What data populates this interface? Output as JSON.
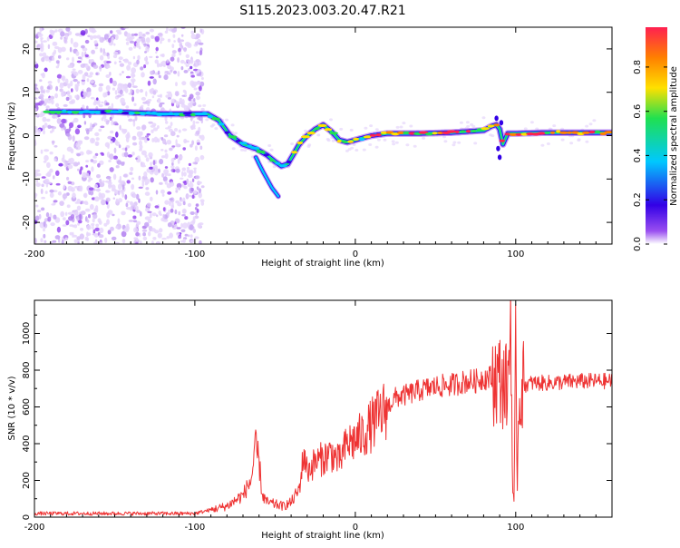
{
  "title": "S115.2023.003.20.47.R21",
  "chart_data": [
    {
      "type": "heatmap",
      "xlabel": "Height of straight line (km)",
      "ylabel": "Frequency (Hz)",
      "xlim": [
        -200,
        160
      ],
      "ylim": [
        -25,
        25
      ],
      "xticks": [
        -200,
        -100,
        0,
        100
      ],
      "yticks": [
        -20,
        -10,
        0,
        10,
        20
      ],
      "ridge": {
        "x": [
          -190,
          -150,
          -120,
          -100,
          -92,
          -85,
          -78,
          -70,
          -62,
          -55,
          -50,
          -46,
          -42,
          -35,
          -30,
          -25,
          -20,
          -15,
          -10,
          -5,
          0,
          10,
          20,
          40,
          60,
          80,
          85,
          88,
          90,
          92,
          95,
          100,
          120,
          140,
          160
        ],
        "y": [
          5.5,
          5.5,
          5,
          5,
          5,
          3.5,
          0,
          -2,
          -3,
          -4.5,
          -6,
          -7,
          -6.5,
          -2,
          0,
          1.5,
          2.5,
          1,
          -1,
          -1.5,
          -1,
          0,
          0.5,
          0.5,
          0.7,
          1.2,
          2.2,
          2.5,
          1.5,
          -2,
          0.5,
          0.5,
          0.7,
          0.7,
          0.7
        ]
      },
      "branch": {
        "x": [
          -62,
          -58,
          -55,
          -52,
          -48
        ],
        "y": [
          -5,
          -8,
          -10,
          -12,
          -14
        ]
      },
      "noise_region_x": [
        -200,
        -95
      ],
      "colorbar": {
        "label": "Normalized spectral amplitude",
        "ticks": [
          0.0,
          0.2,
          0.4,
          0.6,
          0.8
        ],
        "tick_labels": [
          "0.0",
          "0.2",
          "0.4",
          "0.6",
          "0.8"
        ],
        "range": [
          0,
          0.98
        ],
        "colors": [
          "#ffffff",
          "#9a4ff0",
          "#3200e6",
          "#00c8ff",
          "#20e050",
          "#ffe000",
          "#ff8000",
          "#ff2050"
        ]
      }
    },
    {
      "type": "line",
      "xlabel": "Height of straight line (km)",
      "ylabel": "SNR (10 * v/v)",
      "xlim": [
        -200,
        160
      ],
      "ylim": [
        0,
        1180
      ],
      "xticks": [
        -200,
        -100,
        0,
        100
      ],
      "yticks": [
        0,
        200,
        400,
        600,
        800,
        1000
      ],
      "color": "#ee3333",
      "series": [
        {
          "x": [
            -200,
            -180,
            -160,
            -140,
            -120,
            -100,
            -90,
            -80,
            -70,
            -65,
            -62,
            -60,
            -58,
            -55,
            -50,
            -45,
            -40,
            -35,
            -32,
            -30,
            -25,
            -20,
            -15,
            -10,
            -5,
            0,
            5,
            10,
            15,
            20,
            25,
            30,
            40,
            50,
            60,
            70,
            75,
            80,
            85,
            90,
            95,
            97,
            98,
            99,
            100,
            101,
            102,
            105,
            110,
            120,
            140,
            160
          ],
          "y": [
            20,
            20,
            20,
            20,
            20,
            20,
            40,
            60,
            120,
            200,
            380,
            300,
            120,
            80,
            70,
            60,
            80,
            150,
            350,
            250,
            300,
            320,
            350,
            300,
            400,
            420,
            450,
            500,
            550,
            600,
            650,
            660,
            690,
            710,
            720,
            740,
            740,
            760,
            760,
            750,
            700,
            1150,
            150,
            60,
            900,
            200,
            650,
            720,
            730,
            730,
            740,
            740
          ]
        }
      ]
    }
  ]
}
